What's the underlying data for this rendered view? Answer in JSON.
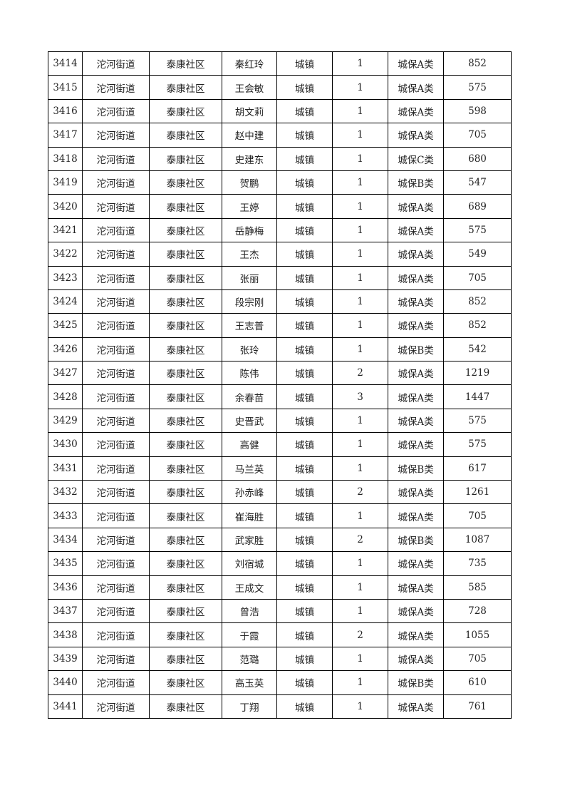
{
  "table": {
    "rows": [
      [
        "3414",
        "沱河街道",
        "泰康社区",
        "秦红玲",
        "城镇",
        "1",
        "城保A类",
        "852"
      ],
      [
        "3415",
        "沱河街道",
        "泰康社区",
        "王会敏",
        "城镇",
        "1",
        "城保A类",
        "575"
      ],
      [
        "3416",
        "沱河街道",
        "泰康社区",
        "胡文莉",
        "城镇",
        "1",
        "城保A类",
        "598"
      ],
      [
        "3417",
        "沱河街道",
        "泰康社区",
        "赵中建",
        "城镇",
        "1",
        "城保A类",
        "705"
      ],
      [
        "3418",
        "沱河街道",
        "泰康社区",
        "史建东",
        "城镇",
        "1",
        "城保C类",
        "680"
      ],
      [
        "3419",
        "沱河街道",
        "泰康社区",
        "贺鹏",
        "城镇",
        "1",
        "城保B类",
        "547"
      ],
      [
        "3420",
        "沱河街道",
        "泰康社区",
        "王婷",
        "城镇",
        "1",
        "城保A类",
        "689"
      ],
      [
        "3421",
        "沱河街道",
        "泰康社区",
        "岳静梅",
        "城镇",
        "1",
        "城保A类",
        "575"
      ],
      [
        "3422",
        "沱河街道",
        "泰康社区",
        "王杰",
        "城镇",
        "1",
        "城保A类",
        "549"
      ],
      [
        "3423",
        "沱河街道",
        "泰康社区",
        "张丽",
        "城镇",
        "1",
        "城保A类",
        "705"
      ],
      [
        "3424",
        "沱河街道",
        "泰康社区",
        "段宗刚",
        "城镇",
        "1",
        "城保A类",
        "852"
      ],
      [
        "3425",
        "沱河街道",
        "泰康社区",
        "王志普",
        "城镇",
        "1",
        "城保A类",
        "852"
      ],
      [
        "3426",
        "沱河街道",
        "泰康社区",
        "张玲",
        "城镇",
        "1",
        "城保B类",
        "542"
      ],
      [
        "3427",
        "沱河街道",
        "泰康社区",
        "陈伟",
        "城镇",
        "2",
        "城保A类",
        "1219"
      ],
      [
        "3428",
        "沱河街道",
        "泰康社区",
        "余春苗",
        "城镇",
        "3",
        "城保A类",
        "1447"
      ],
      [
        "3429",
        "沱河街道",
        "泰康社区",
        "史晋武",
        "城镇",
        "1",
        "城保A类",
        "575"
      ],
      [
        "3430",
        "沱河街道",
        "泰康社区",
        "高健",
        "城镇",
        "1",
        "城保A类",
        "575"
      ],
      [
        "3431",
        "沱河街道",
        "泰康社区",
        "马兰英",
        "城镇",
        "1",
        "城保B类",
        "617"
      ],
      [
        "3432",
        "沱河街道",
        "泰康社区",
        "孙赤峰",
        "城镇",
        "2",
        "城保A类",
        "1261"
      ],
      [
        "3433",
        "沱河街道",
        "泰康社区",
        "崔海胜",
        "城镇",
        "1",
        "城保A类",
        "705"
      ],
      [
        "3434",
        "沱河街道",
        "泰康社区",
        "武家胜",
        "城镇",
        "2",
        "城保B类",
        "1087"
      ],
      [
        "3435",
        "沱河街道",
        "泰康社区",
        "刘宿城",
        "城镇",
        "1",
        "城保A类",
        "735"
      ],
      [
        "3436",
        "沱河街道",
        "泰康社区",
        "王成文",
        "城镇",
        "1",
        "城保A类",
        "585"
      ],
      [
        "3437",
        "沱河街道",
        "泰康社区",
        "曾浩",
        "城镇",
        "1",
        "城保A类",
        "728"
      ],
      [
        "3438",
        "沱河街道",
        "泰康社区",
        "于霞",
        "城镇",
        "2",
        "城保A类",
        "1055"
      ],
      [
        "3439",
        "沱河街道",
        "泰康社区",
        "范璐",
        "城镇",
        "1",
        "城保A类",
        "705"
      ],
      [
        "3440",
        "沱河街道",
        "泰康社区",
        "高玉英",
        "城镇",
        "1",
        "城保B类",
        "610"
      ],
      [
        "3441",
        "沱河街道",
        "泰康社区",
        "丁翔",
        "城镇",
        "1",
        "城保A类",
        "761"
      ]
    ]
  }
}
